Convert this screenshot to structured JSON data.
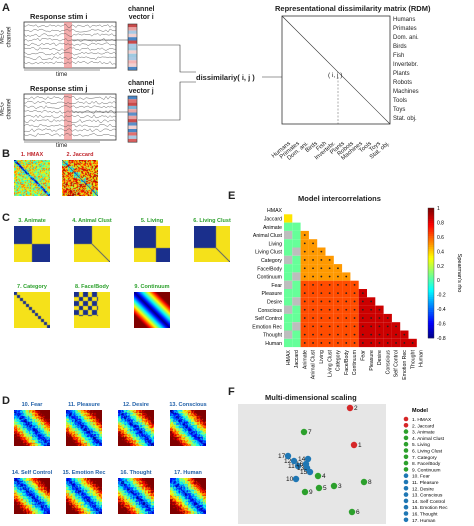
{
  "panels": {
    "a": "A",
    "b": "B",
    "c": "C",
    "d": "D",
    "e": "E",
    "f": "F"
  },
  "panelA": {
    "stim_i": "Response stim i",
    "stim_j": "Response stim j",
    "meg_channel": "MEG\nchannel",
    "time": "time",
    "vector_i": "channel\nvector i",
    "vector_j": "channel\nvector j",
    "dissim": "dissimilariy( i, j )",
    "ij": "( i, j )",
    "rdm_title": "Representational dissimilarity matrix (RDM)",
    "categories": [
      "Humans",
      "Primates",
      "Dom. ani.",
      "Birds",
      "Fish",
      "Invertebr.",
      "Plants",
      "Robots",
      "Machines",
      "Tools",
      "Toys",
      "Stat. obj."
    ]
  },
  "panelB": {
    "titles": [
      "1. HMAX",
      "2. Jaccard"
    ]
  },
  "panelC": {
    "titles": [
      "3. Animate",
      "4. Animal Clust",
      "5. Living",
      "6. Living Clust",
      "7. Category",
      "8. Face/Body",
      "9. Continuum"
    ]
  },
  "panelD": {
    "titles": [
      "10. Fear",
      "11. Pleasure",
      "12. Desire",
      "13. Conscious",
      "14. Self Control",
      "15. Emotion Rec",
      "16. Thought",
      "17. Human"
    ]
  },
  "panelE": {
    "title": "Model intercorrelations",
    "colorbar_label": "Spearman's rho",
    "ticks": [
      "1",
      "0.8",
      "0.6",
      "0.4",
      "0.2",
      "0",
      "-0.2",
      "-0.4",
      "-0.6",
      "-0.8"
    ],
    "models": [
      "HMAX",
      "Jaccard",
      "Animate",
      "Animal Clust",
      "Living",
      "Living Clust",
      "Category",
      "Face/Body",
      "Continuum",
      "Fear",
      "Pleasure",
      "Desire",
      "Conscious",
      "Self Control",
      "Emotion Rec",
      "Thought",
      "Human"
    ]
  },
  "panelF": {
    "title": "Multi-dimensional scaling",
    "legend_title": "Model",
    "legend": [
      "1. HMAX",
      "2. Jaccard",
      "3. Animate",
      "4. Animal Clust",
      "5. Living",
      "6. Living Clust",
      "7. Category",
      "8. Face/Body",
      "9. Continuum",
      "10. Fear",
      "11. Pleasure",
      "12. Desire",
      "13. Conscious",
      "14. Self Control",
      "15. Emotion Rec",
      "16. Thought",
      "17. Human"
    ],
    "legend_colors": [
      "#d62728",
      "#d62728",
      "#2ca02c",
      "#2ca02c",
      "#2ca02c",
      "#2ca02c",
      "#2ca02c",
      "#2ca02c",
      "#2ca02c",
      "#1f77b4",
      "#1f77b4",
      "#1f77b4",
      "#1f77b4",
      "#1f77b4",
      "#1f77b4",
      "#1f77b4",
      "#1f77b4"
    ],
    "points": [
      {
        "label": "1",
        "color": "#d62728"
      },
      {
        "label": "2",
        "color": "#d62728"
      },
      {
        "label": "3",
        "color": "#2ca02c"
      },
      {
        "label": "4",
        "color": "#2ca02c"
      },
      {
        "label": "5",
        "color": "#2ca02c"
      },
      {
        "label": "6",
        "color": "#2ca02c"
      },
      {
        "label": "7",
        "color": "#2ca02c"
      },
      {
        "label": "8",
        "color": "#2ca02c"
      },
      {
        "label": "9",
        "color": "#2ca02c"
      },
      {
        "label": "10",
        "color": "#1f77b4"
      },
      {
        "label": "11",
        "color": "#1f77b4"
      },
      {
        "label": "12",
        "color": "#1f77b4"
      },
      {
        "label": "13",
        "color": "#1f77b4"
      },
      {
        "label": "14",
        "color": "#1f77b4"
      },
      {
        "label": "15",
        "color": "#1f77b4"
      },
      {
        "label": "16",
        "color": "#1f77b4"
      },
      {
        "label": "17",
        "color": "#1f77b4"
      }
    ]
  }
}
